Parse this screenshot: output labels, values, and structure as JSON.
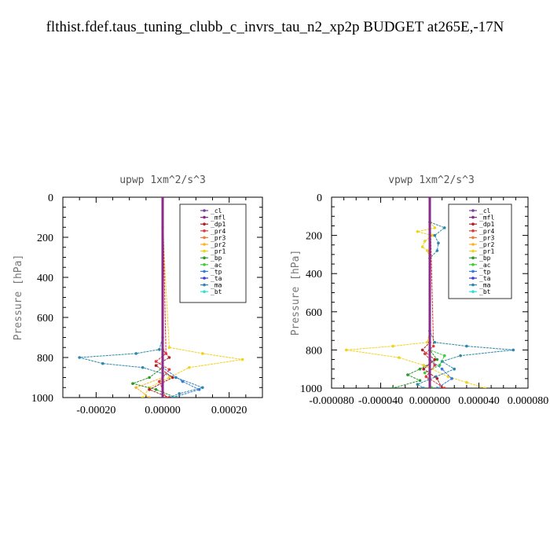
{
  "title": "flthist.fdef.taus_tuning_clubb_c_invrs_tau_n2_xp2p  BUDGET at265E,-17N",
  "legend_colors": {
    "_cl": "#7b3fa0",
    "_mfl": "#8b2a8b",
    "_dp1": "#b0202a",
    "_pr4": "#e03a3a",
    "_pr3": "#f07a3a",
    "_pr2": "#ffb020",
    "_pr1": "#f2d21a",
    "_bp": "#2a9a2a",
    "_ac": "#3acc3a",
    "_tp": "#3a7ae0",
    "_ta": "#3a3ae0",
    "_ma": "#2a8aaa",
    "_bt": "#2ae0e0"
  },
  "chart_data": [
    {
      "type": "line",
      "title": "upwp   1xm^2/s^3",
      "ylabel": "Pressure [hPa]",
      "xlim": [
        -0.0003,
        0.0003
      ],
      "ylim": [
        1000,
        0
      ],
      "xticks": [
        -0.0002,
        0.0,
        0.0002
      ],
      "xtick_labels": [
        "-0.00020",
        "0.00000",
        "0.00020"
      ],
      "yticks": [
        0,
        200,
        400,
        600,
        800,
        1000
      ],
      "ytick_labels": [
        "0",
        "200",
        "400",
        "600",
        "800",
        "1000"
      ],
      "legend": [
        "_cl",
        "_mfl",
        "_dp1",
        "_pr4",
        "_pr3",
        "_pr2",
        "_pr1",
        "_bp",
        "_ac",
        "_tp",
        "_ta",
        "_ma",
        "_bt"
      ],
      "legend_position": "top-right",
      "series": [
        {
          "name": "_pr1",
          "y": [
            0,
            150,
            750,
            780,
            810,
            850,
            900,
            950,
            1000
          ],
          "x": [
            0,
            0,
            2e-05,
            0.00012,
            0.00024,
            8e-05,
            2e-05,
            -4e-05,
            -6e-05
          ]
        },
        {
          "name": "_ma",
          "y": [
            0,
            700,
            760,
            780,
            800,
            830,
            850,
            900,
            950,
            980,
            1000
          ],
          "x": [
            0,
            0,
            -1e-05,
            -8e-05,
            -0.00025,
            -0.00018,
            -6e-05,
            4e-05,
            0.00012,
            5e-05,
            2e-05
          ]
        },
        {
          "name": "_bp",
          "y": [
            0,
            850,
            900,
            930,
            960,
            1000
          ],
          "x": [
            0,
            0,
            -4e-05,
            -9e-05,
            -2e-05,
            4e-05
          ]
        },
        {
          "name": "_tp",
          "y": [
            0,
            850,
            920,
            960,
            1000
          ],
          "x": [
            0,
            0,
            6e-05,
            0.00011,
            3e-05
          ]
        },
        {
          "name": "_dp1",
          "y": [
            0,
            760,
            800,
            840,
            900,
            960,
            1000
          ],
          "x": [
            0,
            0,
            2e-05,
            -2e-05,
            3e-05,
            -4e-05,
            2e-05
          ]
        },
        {
          "name": "_pr4",
          "y": [
            0,
            780,
            820,
            860,
            920,
            1000
          ],
          "x": [
            0,
            1e-05,
            -2e-05,
            2e-05,
            -1e-05,
            1e-05
          ]
        },
        {
          "name": "_pr2",
          "y": [
            0,
            900,
            950,
            1000
          ],
          "x": [
            0,
            0,
            -8e-05,
            -4e-05
          ]
        },
        {
          "name": "_cl",
          "y": [
            0,
            1000
          ],
          "x": [
            0,
            0
          ]
        },
        {
          "name": "_mfl",
          "y": [
            0,
            1000
          ],
          "x": [
            0,
            0
          ]
        }
      ]
    },
    {
      "type": "line",
      "title": "vpwp   1xm^2/s^3",
      "ylabel": "Pressure [hPa]",
      "xlim": [
        -8e-05,
        8e-05
      ],
      "ylim": [
        1000,
        0
      ],
      "xticks": [
        -8e-05,
        -4e-05,
        0.0,
        4e-05,
        8e-05
      ],
      "xtick_labels": [
        "-0.000080",
        "-0.000040",
        "0.000000",
        "0.000040",
        "0.000080"
      ],
      "yticks": [
        0,
        200,
        400,
        600,
        800,
        1000
      ],
      "ytick_labels": [
        "0",
        "200",
        "400",
        "600",
        "800",
        "1000"
      ],
      "legend": [
        "_cl",
        "_mfl",
        "_dp1",
        "_pr4",
        "_pr3",
        "_pr2",
        "_pr1",
        "_bp",
        "_ac",
        "_tp",
        "_ta",
        "_ma",
        "_bt"
      ],
      "legend_position": "top-right",
      "series": [
        {
          "name": "_pr1",
          "y": [
            0,
            130,
            160,
            180,
            200,
            230,
            260,
            280,
            320,
            700,
            760,
            780,
            800,
            840,
            880,
            940,
            970,
            1000
          ],
          "x": [
            0,
            0,
            4e-06,
            -1e-05,
            2e-06,
            -4e-06,
            -6e-06,
            -2e-06,
            0,
            0,
            -2e-06,
            -3e-05,
            -6.8e-05,
            -2.5e-05,
            -5e-06,
            1.5e-05,
            3e-05,
            4.5e-05
          ]
        },
        {
          "name": "_ma",
          "y": [
            0,
            130,
            160,
            200,
            240,
            280,
            320,
            700,
            760,
            780,
            800,
            830,
            860,
            900,
            940,
            980,
            1000
          ],
          "x": [
            0,
            0,
            1.2e-05,
            4e-06,
            7e-06,
            6e-06,
            0,
            0,
            4e-06,
            3e-05,
            6.8e-05,
            2.5e-05,
            1e-05,
            2e-05,
            5e-06,
            -1e-05,
            -5e-06
          ]
        },
        {
          "name": "_bp",
          "y": [
            0,
            800,
            850,
            900,
            930,
            960,
            1000
          ],
          "x": [
            0,
            0,
            6e-06,
            -8e-06,
            -1.8e-05,
            -8e-06,
            -3e-05
          ]
        },
        {
          "name": "_ac",
          "y": [
            0,
            800,
            830,
            880,
            920,
            1000
          ],
          "x": [
            0,
            0,
            1.2e-05,
            8e-06,
            -4e-06,
            2e-06
          ]
        },
        {
          "name": "_tp",
          "y": [
            0,
            850,
            900,
            950,
            1000
          ],
          "x": [
            0,
            0,
            1e-05,
            1.8e-05,
            6e-06
          ]
        },
        {
          "name": "_dp1",
          "y": [
            0,
            760,
            800,
            850,
            900,
            950,
            1000
          ],
          "x": [
            0,
            0,
            -6e-06,
            4e-06,
            -5e-06,
            6e-06,
            1e-05
          ]
        },
        {
          "name": "_pr4",
          "y": [
            0,
            780,
            820,
            880,
            940,
            1000
          ],
          "x": [
            0,
            3e-06,
            -4e-06,
            4e-06,
            -3e-06,
            1.2e-05
          ]
        },
        {
          "name": "_cl",
          "y": [
            0,
            1000
          ],
          "x": [
            0,
            0
          ]
        },
        {
          "name": "_mfl",
          "y": [
            0,
            1000
          ],
          "x": [
            0,
            0
          ]
        }
      ]
    }
  ]
}
